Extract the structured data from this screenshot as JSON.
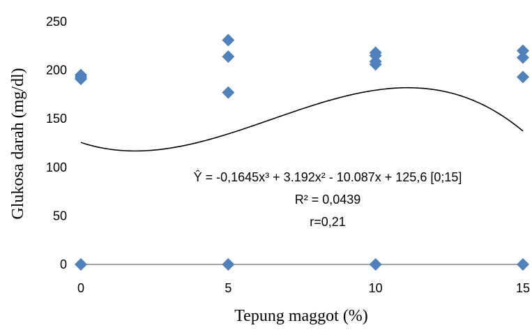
{
  "chart_data": {
    "type": "scatter",
    "xlabel": "Tepung maggot (%)",
    "ylabel": "Glukosa darah (mg/dl)",
    "xlim": [
      0,
      15
    ],
    "ylim": [
      0,
      250
    ],
    "xticks": [
      "0",
      "5",
      "10",
      "15"
    ],
    "yticks": [
      "0",
      "50",
      "100",
      "150",
      "200",
      "250"
    ],
    "grid": false,
    "marker_color": "#4f81bd",
    "points": [
      {
        "x": 0,
        "y": 195
      },
      {
        "x": 0,
        "y": 193
      },
      {
        "x": 0,
        "y": 191
      },
      {
        "x": 0,
        "y": 0
      },
      {
        "x": 5,
        "y": 231
      },
      {
        "x": 5,
        "y": 214
      },
      {
        "x": 5,
        "y": 177
      },
      {
        "x": 5,
        "y": 0
      },
      {
        "x": 10,
        "y": 218
      },
      {
        "x": 10,
        "y": 215
      },
      {
        "x": 10,
        "y": 209
      },
      {
        "x": 10,
        "y": 206
      },
      {
        "x": 10,
        "y": 0
      },
      {
        "x": 15,
        "y": 220
      },
      {
        "x": 15,
        "y": 213
      },
      {
        "x": 15,
        "y": 193
      },
      {
        "x": 15,
        "y": 0
      }
    ],
    "trendline": {
      "type": "polynomial-3",
      "coefficients": [
        -0.1645,
        3.192,
        -10.087,
        125.6
      ],
      "domain": [
        0,
        15
      ],
      "color": "#000000"
    },
    "annotations": [
      "Ŷ = -0,1645x³ + 3.192x² - 10.087x + 125,6 [0;15]",
      "R² = 0,0439",
      "r=0,21"
    ]
  }
}
